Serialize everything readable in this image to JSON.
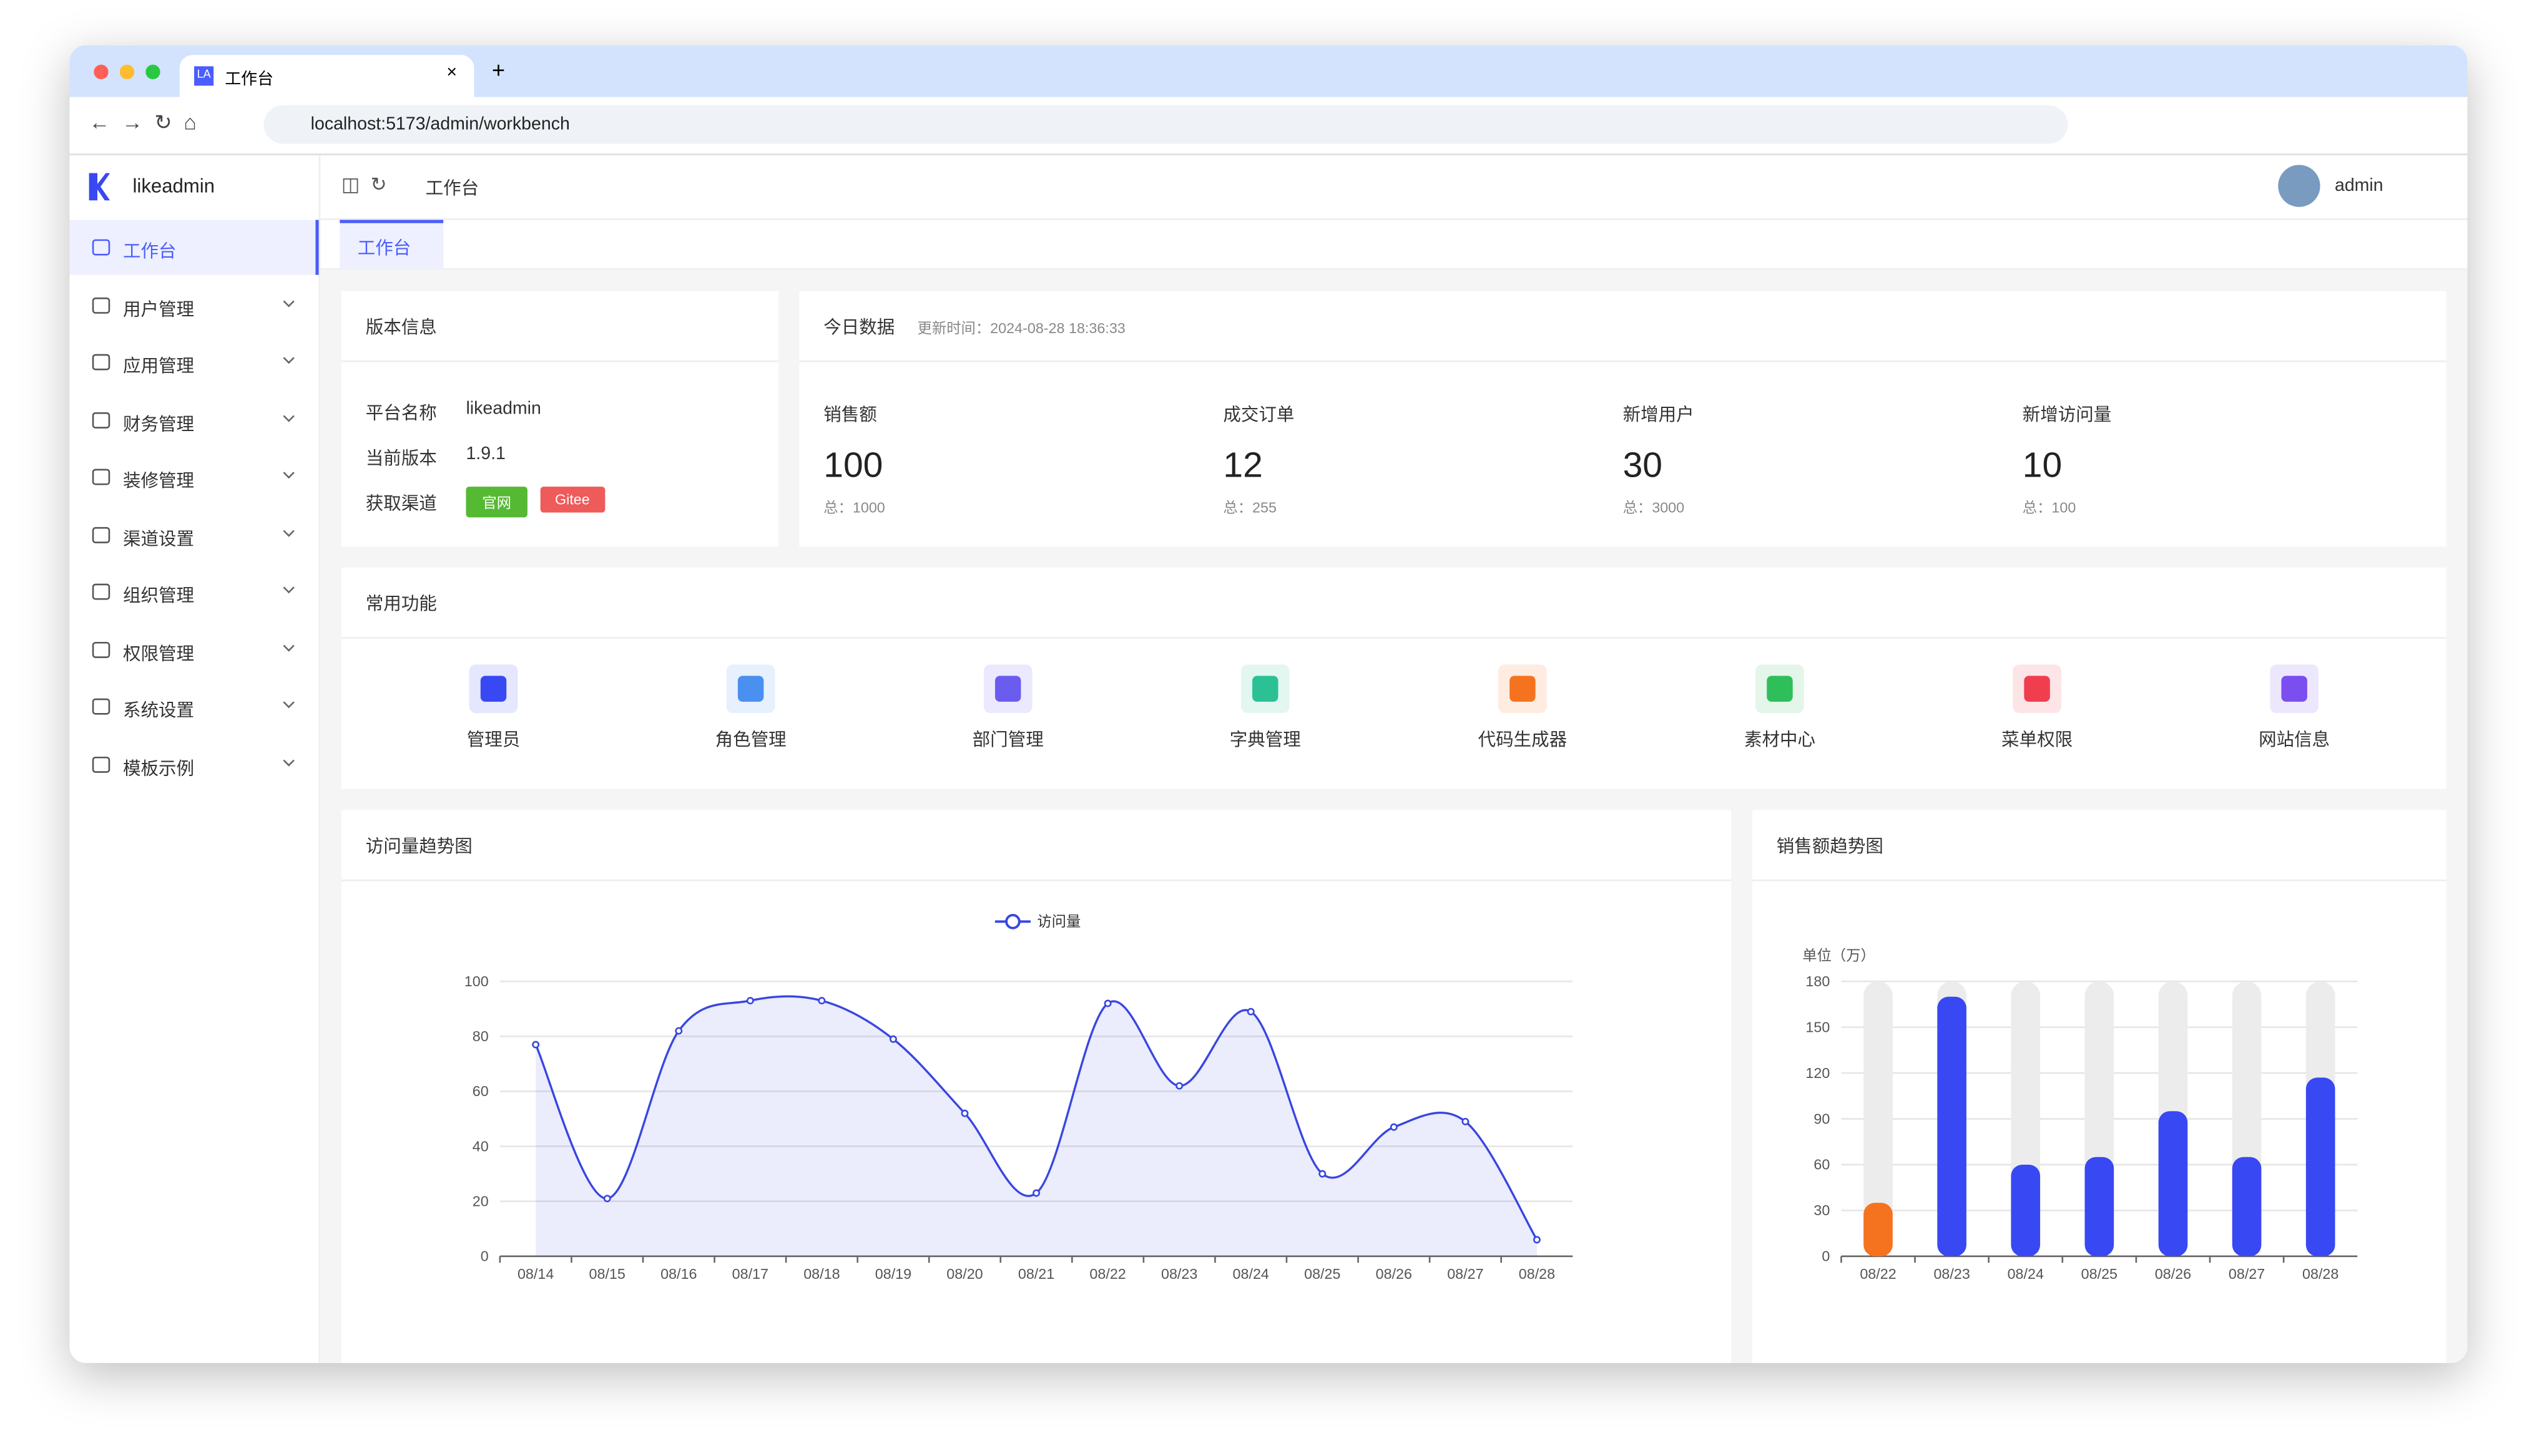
{
  "browser": {
    "tab_title": "工作台",
    "url": "localhost:5173/admin/workbench"
  },
  "sidebar": {
    "logo": "likeadmin",
    "menu": [
      "工作台",
      "用户管理",
      "应用管理",
      "财务管理",
      "装修管理",
      "渠道设置",
      "组织管理",
      "权限管理",
      "系统设置",
      "模板示例"
    ]
  },
  "header": {
    "breadcrumb": "工作台",
    "user": "admin"
  },
  "tabs": [
    "工作台"
  ],
  "version": {
    "title": "版本信息",
    "rows": [
      [
        "平台名称",
        "likeadmin"
      ],
      [
        "当前版本",
        "1.9.1"
      ]
    ],
    "channel_label": "获取渠道",
    "channels": [
      "官网",
      "Gitee"
    ]
  },
  "today": {
    "title": "今日数据",
    "update_time": "更新时间：2024-08-28 18:36:33",
    "stats": [
      {
        "label": "销售额",
        "value": 100,
        "total": "总：1000"
      },
      {
        "label": "成交订单",
        "value": 12,
        "total": "总：255"
      },
      {
        "label": "新增用户",
        "value": 30,
        "total": "总：3000"
      },
      {
        "label": "新增访问量",
        "value": 10,
        "total": "总：100"
      }
    ]
  },
  "common": {
    "title": "常用功能",
    "items": [
      "管理员",
      "角色管理",
      "部门管理",
      "字典管理",
      "代码生成器",
      "素材中心",
      "菜单权限",
      "网站信息"
    ]
  },
  "visits": {
    "title": "访问量趋势图",
    "chart_data": {
      "type": "line",
      "categories": [
        "08/14",
        "08/15",
        "08/16",
        "08/17",
        "08/18",
        "08/19",
        "08/20",
        "08/21",
        "08/22",
        "08/23",
        "08/24",
        "08/25",
        "08/26",
        "08/27",
        "08/28"
      ],
      "series": [
        {
          "name": "访问量",
          "color": "#3846e0",
          "values": [
            77,
            21,
            82,
            93,
            93,
            79,
            52,
            23,
            92,
            62,
            89,
            30,
            47,
            49,
            6
          ]
        }
      ],
      "ylim": [
        0,
        100
      ],
      "yticks": [
        0,
        20,
        40,
        60,
        80,
        100
      ],
      "grid": true
    }
  },
  "sales": {
    "title": "销售额趋势图",
    "chart_data": {
      "type": "bar",
      "y_label": "单位（万）",
      "categories": [
        "08/22",
        "08/23",
        "08/24",
        "08/25",
        "08/26",
        "08/27",
        "08/28"
      ],
      "values": [
        35,
        170,
        60,
        65,
        95,
        65,
        117
      ],
      "colors": [
        "#f5731f",
        "#3848f2",
        "#3848f2",
        "#3848f2",
        "#3848f2",
        "#3848f2",
        "#3848f2"
      ],
      "ylim": [
        0,
        180
      ],
      "yticks": [
        0,
        30,
        60,
        90,
        120,
        150,
        180
      ],
      "grid": true
    }
  }
}
